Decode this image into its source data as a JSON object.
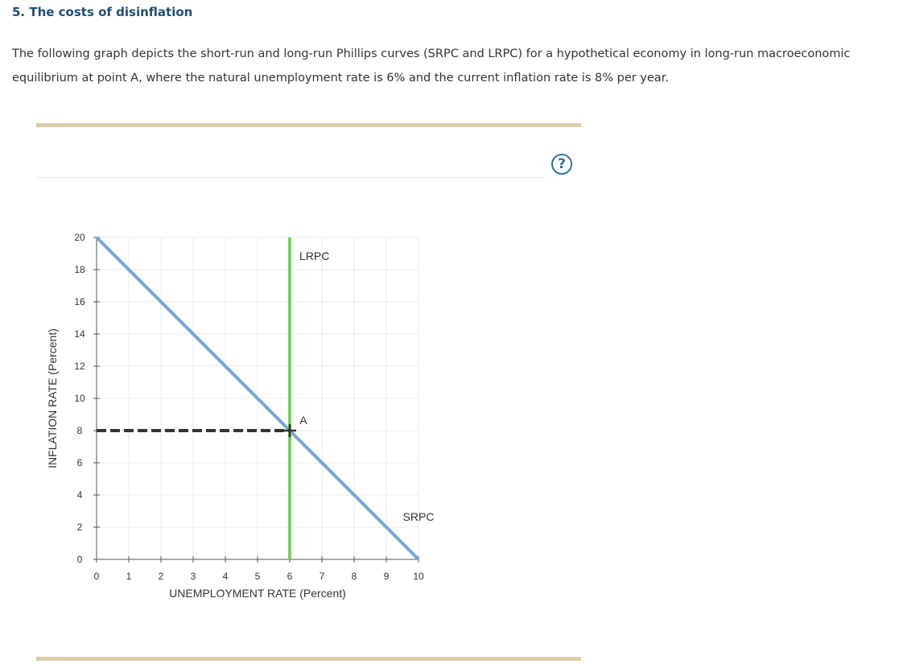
{
  "page": {
    "title": "5. The costs of disinflation",
    "intro": "The following graph depicts the short-run and long-run Phillips curves (SRPC and LRPC) for a hypothetical economy in long-run macroeconomic equilibrium at point A, where the natural unemployment rate is 6% and the current inflation rate is 8% per year.",
    "help_label": "?",
    "help_icon": "question-circle-icon"
  },
  "chart_data": {
    "type": "line",
    "xlabel": "UNEMPLOYMENT RATE (Percent)",
    "ylabel": "INFLATION RATE (Percent)",
    "xlim": [
      0,
      10
    ],
    "ylim": [
      0,
      20
    ],
    "x_ticks": [
      0,
      1,
      2,
      3,
      4,
      5,
      6,
      7,
      8,
      9,
      10
    ],
    "y_ticks": [
      0,
      2,
      4,
      6,
      8,
      10,
      12,
      14,
      16,
      18,
      20
    ],
    "grid": true,
    "series": [
      {
        "name": "SRPC",
        "color": "#7aa6d6",
        "x": [
          0,
          10
        ],
        "y": [
          20,
          0
        ]
      },
      {
        "name": "LRPC",
        "color": "#7dcd63",
        "x": [
          6,
          6
        ],
        "y": [
          0,
          20
        ]
      }
    ],
    "guide": {
      "color": "#333333",
      "x": [
        0,
        6
      ],
      "y": [
        8,
        8
      ]
    },
    "point": {
      "label": "A",
      "x": 6,
      "y": 8,
      "color": "#333333"
    }
  }
}
